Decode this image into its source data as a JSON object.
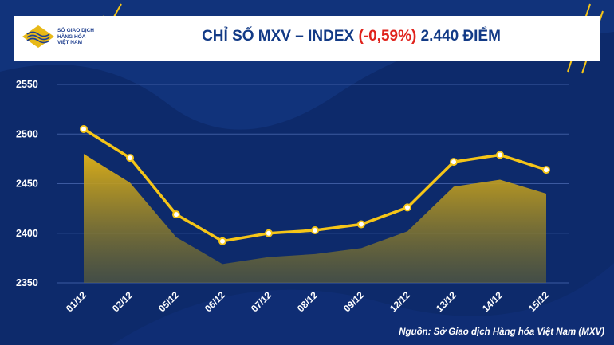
{
  "header": {
    "logo_lines": [
      "SỞ GIAO DỊCH",
      "HÀNG HÓA",
      "VIỆT NAM"
    ],
    "title_main": "CHỈ SỐ MXV – INDEX ",
    "title_change": "(-0,59%)",
    "title_value": " 2.440 ĐIỂM"
  },
  "source": "Nguồn: Sở Giao dịch Hàng hóa Việt Nam (MXV)",
  "colors": {
    "background": "#0d2a6b",
    "line": "#f5c518",
    "area_top": "#d9ad1a",
    "change": "#e0231c"
  },
  "chart_data": {
    "type": "line",
    "categories": [
      "01/12",
      "02/12",
      "05/12",
      "06/12",
      "07/12",
      "08/12",
      "09/12",
      "12/12",
      "13/12",
      "14/12",
      "15/12"
    ],
    "series": [
      {
        "values": [
          2505,
          2476,
          2419,
          2392,
          2400,
          2403,
          2409,
          2426,
          2472,
          2479,
          2464
        ]
      },
      {
        "values": [
          2480,
          2451,
          2396,
          2369,
          2376,
          2379,
          2385,
          2402,
          2447,
          2454,
          2440
        ]
      }
    ],
    "yticks": [
      "2350",
      "2400",
      "2450",
      "2500",
      "2550"
    ],
    "ylim": [
      2350,
      2550
    ]
  }
}
